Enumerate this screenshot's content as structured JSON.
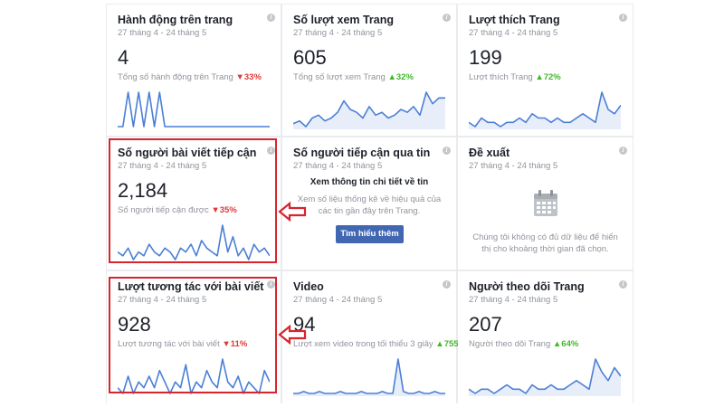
{
  "cards": [
    {
      "title": "Hành động trên trang",
      "date": "27 tháng 4 - 24 tháng 5",
      "value": "4",
      "sub": "Tổng số hành động trên Trang",
      "delta": "33%",
      "trend": "down",
      "spark": [
        0,
        0,
        1,
        0,
        1,
        0,
        1,
        0,
        1,
        0,
        0,
        0,
        0,
        0,
        0,
        0,
        0,
        0,
        0,
        0,
        0,
        0,
        0,
        0,
        0,
        0,
        0,
        0,
        0,
        0
      ],
      "spark_style": "line"
    },
    {
      "title": "Số lượt xem Trang",
      "date": "27 tháng 4 - 24 tháng 5",
      "value": "605",
      "sub": "Tổng số lượt xem Trang",
      "delta": "32%",
      "trend": "up",
      "spark": [
        4,
        5,
        3,
        6,
        7,
        5,
        6,
        8,
        12,
        9,
        8,
        6,
        10,
        7,
        8,
        6,
        7,
        9,
        8,
        10,
        7,
        15,
        11,
        13,
        13
      ],
      "spark_style": "area"
    },
    {
      "title": "Lượt thích Trang",
      "date": "27 tháng 4 - 24 tháng 5",
      "value": "199",
      "sub": "Lượt thích Trang",
      "delta": "72%",
      "trend": "up",
      "spark": [
        3,
        2,
        4,
        3,
        3,
        2,
        3,
        3,
        4,
        3,
        5,
        4,
        4,
        3,
        4,
        3,
        3,
        4,
        5,
        4,
        3,
        10,
        6,
        5,
        7
      ],
      "spark_style": "area"
    },
    {
      "title": "Số người bài viết tiếp cận",
      "date": "27 tháng 4 - 24 tháng 5",
      "value": "2,184",
      "sub": "Số người tiếp cận được",
      "delta": "35%",
      "trend": "down",
      "spark": [
        5,
        4,
        6,
        3,
        5,
        4,
        7,
        5,
        4,
        6,
        5,
        3,
        6,
        5,
        7,
        4,
        8,
        6,
        5,
        4,
        12,
        5,
        9,
        4,
        6,
        3,
        7,
        5,
        6,
        4
      ],
      "spark_style": "line"
    },
    {
      "title": "Số người tiếp cận qua tin",
      "date": "27 tháng 4 - 24 tháng 5",
      "center_title": "Xem thông tin chi tiết về tin",
      "center_text": "Xem số liệu thống kê về hiệu quả của các tin gần đây trên Trang.",
      "button": "Tìm hiểu thêm"
    },
    {
      "title": "Đề xuất",
      "date": "27 tháng 4 - 24 tháng 5",
      "empty_text": "Chúng tôi không có đủ dữ liệu để hiển thị cho khoảng thời gian đã chọn."
    },
    {
      "title": "Lượt tương tác với bài viết",
      "date": "27 tháng 4 - 24 tháng 5",
      "value": "928",
      "sub": "Lượt tương tác với bài viết",
      "delta": "11%",
      "trend": "down",
      "spark": [
        4,
        3,
        6,
        3,
        5,
        4,
        6,
        4,
        7,
        5,
        3,
        5,
        4,
        8,
        3,
        5,
        4,
        7,
        5,
        4,
        9,
        5,
        4,
        6,
        3,
        5,
        4,
        3,
        7,
        5
      ],
      "spark_style": "line"
    },
    {
      "title": "Video",
      "date": "27 tháng 4 - 24 tháng 5",
      "value": "94",
      "sub": "Lượt xem video trong tối thiểu 3 giây",
      "delta": "755%",
      "trend": "up",
      "spark": [
        2,
        2,
        3,
        2,
        2,
        3,
        2,
        2,
        2,
        3,
        2,
        2,
        2,
        3,
        2,
        2,
        2,
        3,
        2,
        2,
        20,
        3,
        2,
        2,
        3,
        2,
        2,
        3,
        2,
        2
      ],
      "spark_style": "area"
    },
    {
      "title": "Người theo dõi Trang",
      "date": "27 tháng 4 - 24 tháng 5",
      "value": "207",
      "sub": "Người theo dõi Trang",
      "delta": "64%",
      "trend": "up",
      "spark": [
        3,
        2,
        3,
        3,
        2,
        3,
        4,
        3,
        3,
        2,
        4,
        3,
        3,
        4,
        3,
        3,
        4,
        5,
        4,
        3,
        10,
        7,
        5,
        8,
        6
      ],
      "spark_style": "area"
    }
  ],
  "colors": {
    "accent": "#4267b2",
    "line": "#4a7fd6",
    "area_fill": "#e8eef9",
    "highlight": "#d6252e",
    "down": "#e03a3a",
    "up": "#42b72a"
  }
}
